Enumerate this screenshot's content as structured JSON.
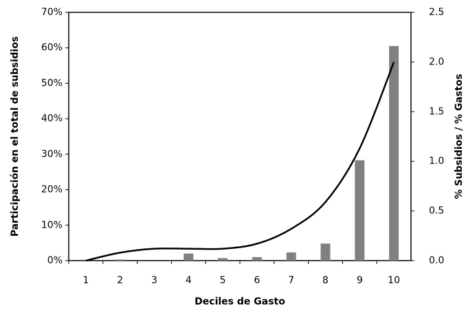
{
  "chart_data": {
    "type": "bar_line",
    "x_label": "Deciles de Gasto",
    "y_label": "Participación  en el total de subsidios",
    "y2_label": "% Subsidios  / % Gastos",
    "categories": [
      "1",
      "2",
      "3",
      "4",
      "5",
      "6",
      "7",
      "8",
      "9",
      "10"
    ],
    "series": [
      {
        "type": "bar",
        "color": "#808080",
        "values": [
          0,
          0.3,
          0,
          2.0,
          0.7,
          1.0,
          2.3,
          4.8,
          28.3,
          60.5
        ]
      },
      {
        "type": "line",
        "axis": "y2",
        "color": "#000000",
        "values": [
          0,
          0.08,
          0.12,
          0.12,
          0.12,
          0.17,
          0.32,
          0.59,
          1.13,
          2.0
        ]
      }
    ],
    "ylim": [
      0,
      70
    ],
    "yticks": [
      {
        "value": 0,
        "label": "0%"
      },
      {
        "value": 10,
        "label": "10%"
      },
      {
        "value": 20,
        "label": "20%"
      },
      {
        "value": 30,
        "label": "30%"
      },
      {
        "value": 40,
        "label": "40%"
      },
      {
        "value": 50,
        "label": "50%"
      },
      {
        "value": 60,
        "label": "60%"
      },
      {
        "value": 70,
        "label": "70%"
      }
    ],
    "y2lim": [
      0,
      2.5
    ],
    "y2ticks": [
      {
        "value": 0,
        "label": "0.0"
      },
      {
        "value": 0.5,
        "label": "0.5"
      },
      {
        "value": 1,
        "label": "1.0"
      },
      {
        "value": 1.5,
        "label": "1.5"
      },
      {
        "value": 2,
        "label": "2.0"
      },
      {
        "value": 2.5,
        "label": "2.5"
      }
    ]
  }
}
